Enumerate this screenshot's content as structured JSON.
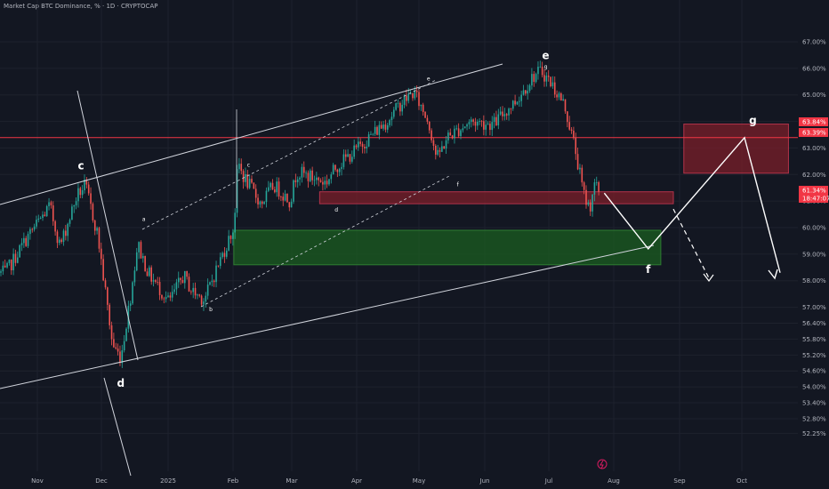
{
  "header": {
    "title": "Market Cap BTC Dominance, % · 1D · CRYPTOCAP",
    "unit_button": "%"
  },
  "colors": {
    "background": "#131722",
    "candle_up": "#26a69a",
    "candle_down": "#ef5350",
    "support_zone": "#1b5e20",
    "resistance_zone": "#7b1f2a",
    "price_line": "#f23645",
    "annotation": "#ffffff"
  },
  "chart_data": {
    "type": "candlestick",
    "symbol": "CRYPTOCAP:BTC.D",
    "interval": "1D",
    "unit": "%",
    "ylim": [
      51.9,
      67.9
    ],
    "y_ticks": [
      "67.00%",
      "66.00%",
      "65.00%",
      "64.00%",
      "63.00%",
      "62.00%",
      "61.00%",
      "60.00%",
      "59.00%",
      "58.00%",
      "57.00%",
      "56.40%",
      "55.80%",
      "55.20%",
      "54.60%",
      "54.00%",
      "53.40%",
      "52.80%",
      "52.25%"
    ],
    "x_ticks": [
      "Nov",
      "Dec",
      "2025",
      "Feb",
      "Mar",
      "Apr",
      "May",
      "Jun",
      "Jul",
      "Aug",
      "Sep",
      "Oct"
    ],
    "price_path": [
      [
        "2024-10-15",
        58.3
      ],
      [
        "2024-10-25",
        59.6
      ],
      [
        "2024-11-05",
        60.8
      ],
      [
        "2024-11-10",
        59.3
      ],
      [
        "2024-11-18",
        61.2
      ],
      [
        "2024-11-22",
        61.6
      ],
      [
        "2024-11-28",
        59.7
      ],
      [
        "2024-12-05",
        55.6
      ],
      [
        "2024-12-09",
        55.1
      ],
      [
        "2024-12-14",
        57.6
      ],
      [
        "2024-12-17",
        59.4
      ],
      [
        "2024-12-22",
        58.3
      ],
      [
        "2025-01-01",
        57.2
      ],
      [
        "2025-01-08",
        58.2
      ],
      [
        "2025-01-12",
        57.6
      ],
      [
        "2025-01-18",
        57.3
      ],
      [
        "2025-01-24",
        58.5
      ],
      [
        "2025-02-01",
        60.0
      ],
      [
        "2025-02-03",
        62.5
      ],
      [
        "2025-02-05",
        62.0
      ],
      [
        "2025-02-14",
        60.9
      ],
      [
        "2025-02-20",
        61.6
      ],
      [
        "2025-02-28",
        61.0
      ],
      [
        "2025-03-03",
        62.1
      ],
      [
        "2025-03-10",
        61.9
      ],
      [
        "2025-03-17",
        61.7
      ],
      [
        "2025-03-22",
        62.3
      ],
      [
        "2025-03-31",
        62.9
      ],
      [
        "2025-04-08",
        63.5
      ],
      [
        "2025-04-15",
        64.0
      ],
      [
        "2025-04-22",
        64.7
      ],
      [
        "2025-04-28",
        65.1
      ],
      [
        "2025-05-05",
        64.0
      ],
      [
        "2025-05-09",
        62.6
      ],
      [
        "2025-05-14",
        63.4
      ],
      [
        "2025-05-25",
        64.0
      ],
      [
        "2025-06-05",
        63.9
      ],
      [
        "2025-06-16",
        64.8
      ],
      [
        "2025-06-24",
        65.7
      ],
      [
        "2025-06-28",
        65.9
      ],
      [
        "2025-07-03",
        65.4
      ],
      [
        "2025-07-09",
        64.6
      ],
      [
        "2025-07-14",
        63.0
      ],
      [
        "2025-07-18",
        61.3
      ],
      [
        "2025-07-21",
        60.7
      ],
      [
        "2025-07-23",
        61.6
      ],
      [
        "2025-07-26",
        61.34
      ]
    ],
    "wave_labels": [
      {
        "text": "c",
        "date": "2024-11-20",
        "value": 62.2,
        "size": "large"
      },
      {
        "text": "d",
        "date": "2024-12-09",
        "value": 54.0,
        "size": "large"
      },
      {
        "text": "a",
        "date": "2024-12-20",
        "value": 60.25,
        "size": "small"
      },
      {
        "text": "b",
        "date": "2025-01-21",
        "value": 56.85,
        "size": "small"
      },
      {
        "text": "c",
        "date": "2025-02-08",
        "value": 62.3,
        "size": "small"
      },
      {
        "text": "d",
        "date": "2025-03-22",
        "value": 60.6,
        "size": "small"
      },
      {
        "text": "e",
        "date": "2025-05-05",
        "value": 65.55,
        "size": "small"
      },
      {
        "text": "f",
        "date": "2025-05-19",
        "value": 61.55,
        "size": "small"
      },
      {
        "text": "g",
        "date": "2025-06-30",
        "value": 66.0,
        "size": "small"
      },
      {
        "text": "e",
        "date": "2025-06-30",
        "value": 66.35,
        "size": "large"
      },
      {
        "text": "f",
        "date": "2025-08-18",
        "value": 58.3,
        "size": "large"
      },
      {
        "text": "g",
        "date": "2025-10-07",
        "value": 63.9,
        "size": "large"
      }
    ],
    "price_labels": [
      {
        "text": "63.84%",
        "value": 63.84,
        "color": "#f23645"
      },
      {
        "text": "63.39%",
        "value": 63.39,
        "color": "#f23645"
      },
      {
        "text": "61.34%",
        "value": 61.34,
        "color": "#f23645"
      },
      {
        "text": "18:47:07",
        "value": 61.34,
        "color": "#f23645"
      }
    ],
    "zones": [
      {
        "kind": "support",
        "from": "2025-02-01",
        "to": "2025-08-24",
        "low": 58.6,
        "high": 59.9
      },
      {
        "kind": "resistance",
        "from": "2025-03-14",
        "to": "2025-08-30",
        "low": 60.9,
        "high": 61.35
      },
      {
        "kind": "resistance",
        "from": "2025-09-04",
        "to": "2025-10-24",
        "low": 62.05,
        "high": 63.9
      }
    ],
    "horizontal_line": 63.39,
    "projection": [
      [
        "2025-07-28",
        61.3
      ],
      [
        "2025-08-18",
        59.2
      ],
      [
        "2025-10-03",
        63.39
      ],
      [
        "2025-10-20",
        58.3
      ]
    ],
    "alt_projection": [
      [
        "2025-08-30",
        60.7
      ],
      [
        "2025-09-16",
        58.1
      ]
    ]
  }
}
